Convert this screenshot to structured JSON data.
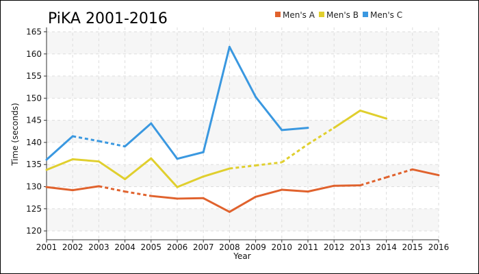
{
  "chart_data": {
    "type": "line",
    "title": "PiKA 2001-2016",
    "xlabel": "Year",
    "ylabel": "Time (seconds)",
    "xlim": [
      2001,
      2016
    ],
    "ylim": [
      118,
      166
    ],
    "x_ticks": [
      2001,
      2002,
      2003,
      2004,
      2005,
      2006,
      2007,
      2008,
      2009,
      2010,
      2011,
      2012,
      2013,
      2014,
      2015,
      2016
    ],
    "y_ticks": [
      120,
      125,
      130,
      135,
      140,
      145,
      150,
      155,
      160,
      165
    ],
    "grid": true,
    "legend_position": "top",
    "series": [
      {
        "name": "Men's A",
        "color": "#e0622d",
        "points": [
          [
            2001,
            129.9
          ],
          [
            2002,
            129.2
          ],
          [
            2003,
            130.1
          ],
          [
            2004,
            128.9
          ],
          [
            2005,
            127.9
          ],
          [
            2006,
            127.3
          ],
          [
            2007,
            127.4
          ],
          [
            2008,
            124.3
          ],
          [
            2009,
            127.7
          ],
          [
            2010,
            129.3
          ],
          [
            2011,
            128.9
          ],
          [
            2012,
            130.2
          ],
          [
            2013,
            130.3
          ],
          [
            2014,
            132.1
          ],
          [
            2015,
            133.9
          ],
          [
            2016,
            132.6
          ]
        ],
        "dashed_segments": [
          [
            2003,
            2004
          ],
          [
            2004,
            2005
          ],
          [
            2013,
            2014
          ],
          [
            2014,
            2015
          ]
        ]
      },
      {
        "name": "Men's B",
        "color": "#e0cf2e",
        "points": [
          [
            2001,
            133.8
          ],
          [
            2002,
            136.2
          ],
          [
            2003,
            135.7
          ],
          [
            2004,
            131.7
          ],
          [
            2005,
            136.4
          ],
          [
            2006,
            129.9
          ],
          [
            2007,
            132.3
          ],
          [
            2008,
            134.1
          ],
          [
            2009,
            134.8
          ],
          [
            2010,
            135.5
          ],
          [
            2011,
            139.6
          ],
          [
            2012,
            143.3
          ],
          [
            2013,
            147.2
          ],
          [
            2014,
            145.4
          ]
        ],
        "dashed_segments": [
          [
            2008,
            2009
          ],
          [
            2009,
            2010
          ],
          [
            2010,
            2011
          ],
          [
            2011,
            2012
          ]
        ]
      },
      {
        "name": "Men's C",
        "color": "#3a98e0",
        "points": [
          [
            2001,
            136.1
          ],
          [
            2002,
            141.4
          ],
          [
            2003,
            140.3
          ],
          [
            2004,
            139.1
          ],
          [
            2005,
            144.3
          ],
          [
            2006,
            136.3
          ],
          [
            2007,
            137.8
          ],
          [
            2008,
            161.6
          ],
          [
            2009,
            150.3
          ],
          [
            2010,
            142.8
          ],
          [
            2011,
            143.3
          ]
        ],
        "dashed_segments": [
          [
            2002,
            2003
          ],
          [
            2003,
            2004
          ]
        ]
      }
    ],
    "background_bands": [
      [
        120,
        125
      ],
      [
        130,
        135
      ],
      [
        140,
        145
      ],
      [
        150,
        155
      ],
      [
        160,
        165
      ]
    ],
    "band_color": "#f6f6f6",
    "grid_color": "#dddddd"
  }
}
